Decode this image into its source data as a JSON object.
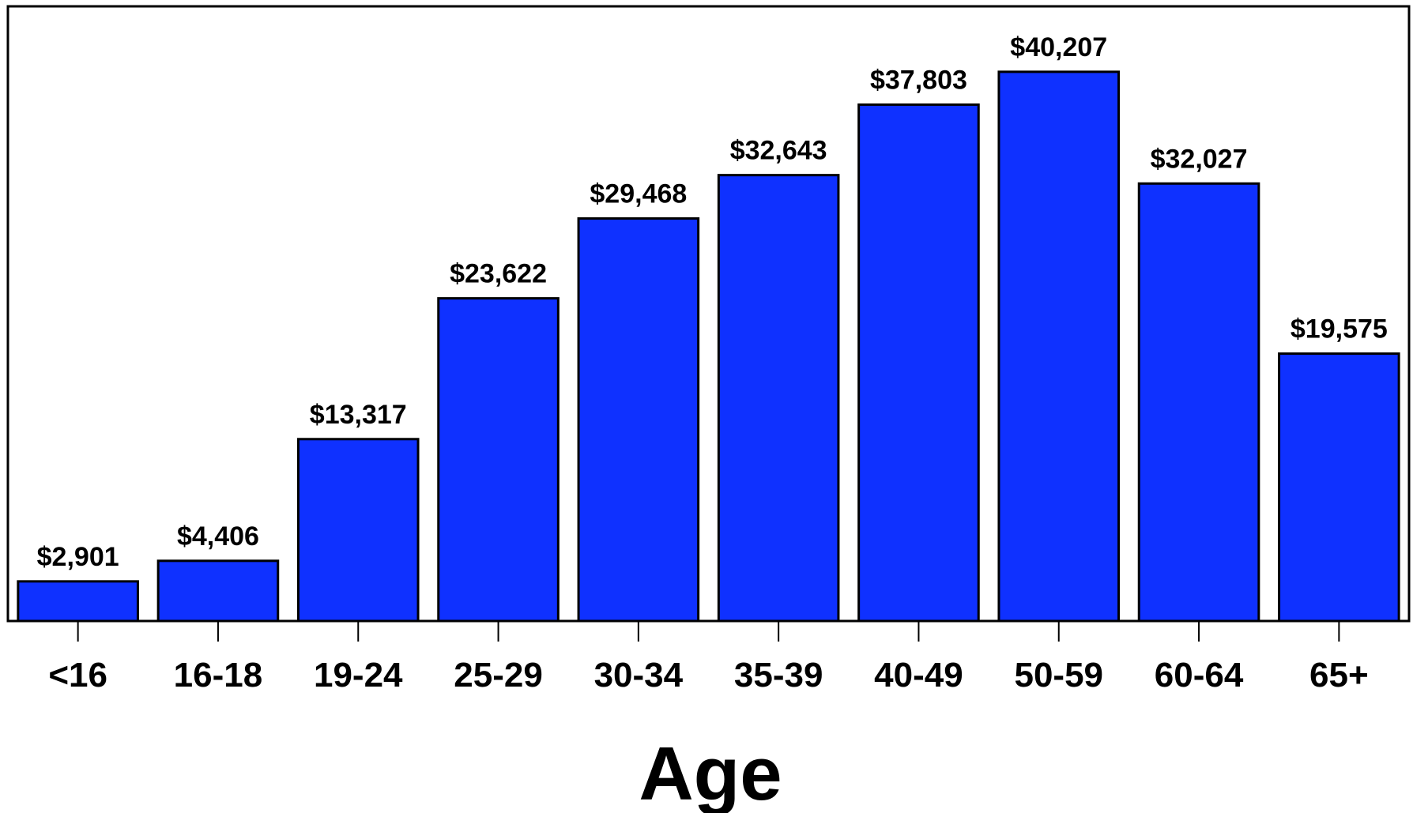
{
  "chart_data": {
    "type": "bar",
    "categories": [
      "<16",
      "16-18",
      "19-24",
      "25-29",
      "30-34",
      "35-39",
      "40-49",
      "50-59",
      "60-64",
      "65+"
    ],
    "values": [
      2901,
      4406,
      13317,
      23622,
      29468,
      32643,
      37803,
      40207,
      32027,
      19575
    ],
    "data_labels": [
      "$2,901",
      "$4,406",
      "$13,317",
      "$23,622",
      "$29,468",
      "$32,643",
      "$37,803",
      "$40,207",
      "$32,027",
      "$19,575"
    ],
    "title": "",
    "xlabel": "Age",
    "ylabel": "",
    "ylim": [
      0,
      45000
    ],
    "grid": false,
    "legend": "none",
    "colors": {
      "bar_fill": "#0f31ff",
      "bar_stroke": "#000000",
      "text": "#000000",
      "background": "#ffffff"
    }
  }
}
